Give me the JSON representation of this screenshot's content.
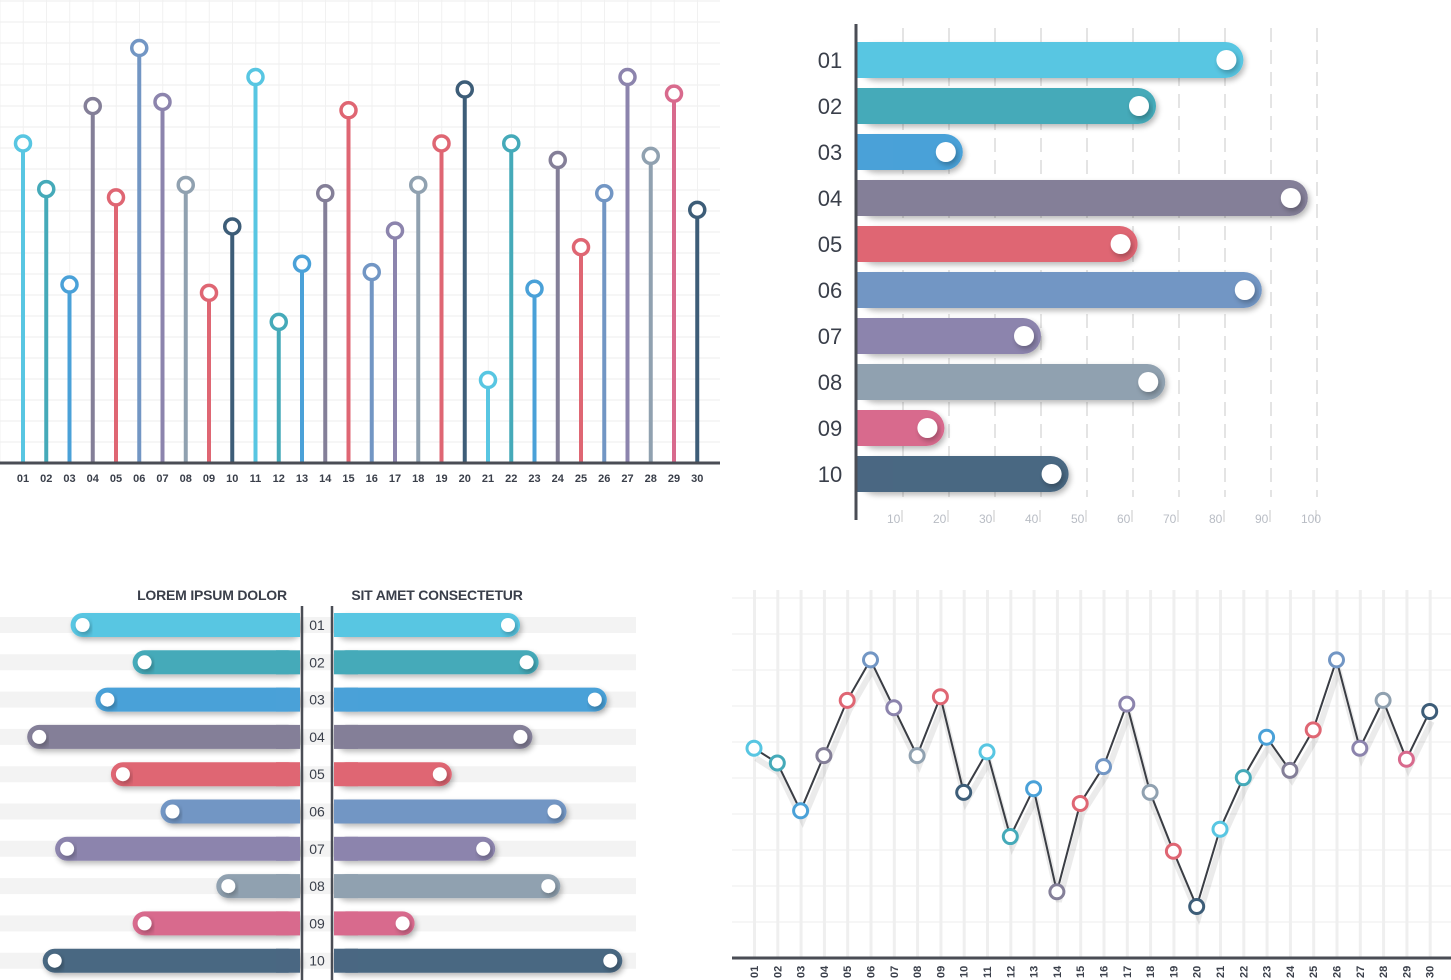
{
  "palette": [
    "#58c6e2",
    "#45aab9",
    "#4aa1d8",
    "#847f98",
    "#df6673",
    "#7296c4",
    "#8c84ad",
    "#90a1b0",
    "#d86a8d",
    "#4a6782"
  ],
  "chart_data": [
    {
      "type": "bar",
      "style": "lollipop-vertical",
      "categories": [
        "01",
        "02",
        "03",
        "04",
        "05",
        "06",
        "07",
        "08",
        "09",
        "10",
        "11",
        "12",
        "13",
        "14",
        "15",
        "16",
        "17",
        "18",
        "19",
        "20",
        "21",
        "22",
        "23",
        "24",
        "25",
        "26",
        "27",
        "28",
        "29",
        "30"
      ],
      "values": [
        77,
        66,
        43,
        86,
        64,
        100,
        87,
        67,
        41,
        57,
        93,
        34,
        48,
        65,
        85,
        46,
        56,
        67,
        77,
        90,
        20,
        77,
        42,
        73,
        52,
        65,
        93,
        74,
        89,
        61
      ],
      "colors": [
        "#58c6e2",
        "#45aab9",
        "#4aa1d8",
        "#847f98",
        "#df6673",
        "#7296c4",
        "#8c84ad",
        "#90a1b0",
        "#df6673",
        "#3d5d78",
        "#58c6e2",
        "#45aab9",
        "#4aa1d8",
        "#847f98",
        "#df6673",
        "#7296c4",
        "#8c84ad",
        "#90a1b0",
        "#df6673",
        "#3d5d78",
        "#58c6e2",
        "#45aab9",
        "#4aa1d8",
        "#847f98",
        "#df6673",
        "#7296c4",
        "#8c84ad",
        "#90a1b0",
        "#d86a8d",
        "#3d5d78"
      ],
      "ylim": [
        0,
        100
      ],
      "grid": true
    },
    {
      "type": "bar",
      "style": "horizontal-rounded",
      "categories": [
        "01",
        "02",
        "03",
        "04",
        "05",
        "06",
        "07",
        "08",
        "09",
        "10"
      ],
      "values": [
        84,
        65,
        23,
        98,
        61,
        88,
        40,
        67,
        19,
        46
      ],
      "x_ticks": [
        "10",
        "20",
        "30",
        "40",
        "50",
        "60",
        "70",
        "80",
        "90",
        "100"
      ],
      "xlim": [
        0,
        100
      ],
      "grid": true
    },
    {
      "type": "bar",
      "style": "butterfly",
      "left_title": "LOREM IPSUM DOLOR",
      "right_title": "SIT AMET CONSECTETUR",
      "categories": [
        "01",
        "02",
        "03",
        "04",
        "05",
        "06",
        "07",
        "08",
        "09",
        "10"
      ],
      "left_values": [
        74,
        54,
        66,
        88,
        61,
        45,
        79,
        27,
        54,
        83
      ],
      "right_values": [
        60,
        66,
        88,
        64,
        38,
        75,
        52,
        73,
        26,
        93
      ]
    },
    {
      "type": "line",
      "categories": [
        "01",
        "02",
        "03",
        "04",
        "05",
        "06",
        "07",
        "08",
        "09",
        "10",
        "11",
        "12",
        "13",
        "14",
        "15",
        "16",
        "17",
        "18",
        "19",
        "20",
        "21",
        "22",
        "23",
        "24",
        "25",
        "26",
        "27",
        "28",
        "29",
        "30"
      ],
      "values": [
        57,
        53,
        40,
        55,
        70,
        81,
        68,
        55,
        71,
        45,
        56,
        33,
        46,
        18,
        42,
        52,
        69,
        45,
        29,
        14,
        35,
        49,
        60,
        51,
        62,
        81,
        57,
        70,
        54,
        67
      ],
      "point_colors": [
        "#58c6e2",
        "#45aab9",
        "#4aa1d8",
        "#847f98",
        "#df6673",
        "#7296c4",
        "#8c84ad",
        "#90a1b0",
        "#df6673",
        "#3d5d78",
        "#58c6e2",
        "#45aab9",
        "#4aa1d8",
        "#847f98",
        "#df6673",
        "#7296c4",
        "#8c84ad",
        "#90a1b0",
        "#df6673",
        "#3d5d78",
        "#58c6e2",
        "#45aab9",
        "#4aa1d8",
        "#847f98",
        "#df6673",
        "#7296c4",
        "#8c84ad",
        "#90a1b0",
        "#d86a8d",
        "#3d5d78"
      ],
      "ylim": [
        0,
        100
      ],
      "grid": true
    }
  ]
}
